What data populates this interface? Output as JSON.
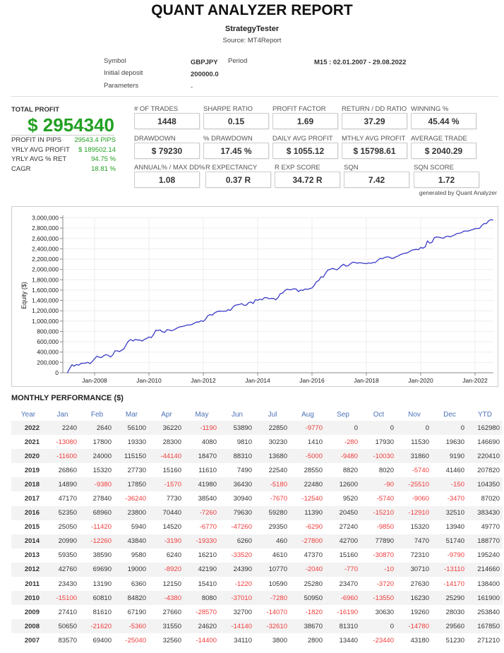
{
  "header": {
    "title": "QUANT ANALYZER REPORT",
    "subtitle": "StrategyTester",
    "source": "Source: MT4Report"
  },
  "info": {
    "symbol_label": "Symbol",
    "symbol": "GBPJPY",
    "period_label": "Period",
    "period": "M15 : 02.01.2007 - 29.08.2022",
    "deposit_label": "Initial deposit",
    "deposit": "200000.0",
    "parameters_label": "Parameters",
    "parameters": "-"
  },
  "summary": {
    "total_profit_label": "TOTAL PROFIT",
    "total_profit": "$ 2954340",
    "rows": [
      {
        "label": "PROFIT IN PIPS",
        "value": "29543.4 PIPS"
      },
      {
        "label": "YRLY AVG PROFIT",
        "value": "$ 189502.14"
      },
      {
        "label": "YRLY AVG % RET",
        "value": "94.75 %"
      },
      {
        "label": "CAGR",
        "value": "18.81 %"
      }
    ]
  },
  "stats": [
    [
      {
        "label": "# OF TRADES",
        "value": "1448"
      },
      {
        "label": "SHARPE RATIO",
        "value": "0.15"
      },
      {
        "label": "PROFIT FACTOR",
        "value": "1.69"
      },
      {
        "label": "RETURN / DD RATIO",
        "value": "37.29"
      },
      {
        "label": "WINNING %",
        "value": "45.44 %"
      }
    ],
    [
      {
        "label": "DRAWDOWN",
        "value": "$ 79230"
      },
      {
        "label": "% DRAWDOWN",
        "value": "17.45 %"
      },
      {
        "label": "DAILY AVG PROFIT",
        "value": "$ 1055.12"
      },
      {
        "label": "MTHLY AVG PROFIT",
        "value": "$ 15798.61"
      },
      {
        "label": "AVERAGE TRADE",
        "value": "$ 2040.29"
      }
    ],
    [
      {
        "label": "ANNUAL% / MAX DD%",
        "value": "1.08"
      },
      {
        "label": "R EXPECTANCY",
        "value": "0.37 R"
      },
      {
        "label": "R EXP SCORE",
        "value": "34.72 R"
      },
      {
        "label": "SQN",
        "value": "7.42"
      },
      {
        "label": "SQN SCORE",
        "value": "1.72"
      }
    ]
  ],
  "generated_by": "generated by Quant Analyzer",
  "chart_data": {
    "type": "line",
    "title": "",
    "xlabel": "",
    "ylabel": "Equity ($)",
    "ylim": [
      0,
      3000000
    ],
    "yticks": [
      "0",
      "200,000",
      "400,000",
      "600,000",
      "800,000",
      "1,000,000",
      "1,200,000",
      "1,400,000",
      "1,600,000",
      "1,800,000",
      "2,000,000",
      "2,200,000",
      "2,400,000",
      "2,600,000",
      "2,800,000",
      "3,000,000"
    ],
    "xticks": [
      "Jan-2008",
      "Jan-2010",
      "Jan-2012",
      "Jan-2014",
      "Jan-2016",
      "Jan-2018",
      "Jan-2020",
      "Jan-2022"
    ],
    "series": [
      {
        "name": "Equity",
        "color": "#3a3ac8",
        "values": "cumulative sum of monthly_performance values, Jan-2007 to Aug-2022 (0 to 2954340)"
      }
    ],
    "grid": true,
    "legend": "none"
  },
  "monthly": {
    "title": "MONTHLY PERFORMANCE ($)",
    "columns": [
      "Year",
      "Jan",
      "Feb",
      "Mar",
      "Apr",
      "May",
      "Jun",
      "Jul",
      "Aug",
      "Sep",
      "Oct",
      "Nov",
      "Dec",
      "YTD"
    ],
    "rows": [
      [
        "2022",
        2240,
        2640,
        56100,
        36220,
        -1190,
        53890,
        22850,
        -9770,
        0,
        0,
        0,
        0,
        162980
      ],
      [
        "2021",
        -13080,
        17800,
        19330,
        28300,
        4080,
        9810,
        30230,
        1410,
        -280,
        17930,
        11530,
        19630,
        146690
      ],
      [
        "2020",
        -11600,
        24000,
        115150,
        -44140,
        18470,
        88310,
        13680,
        -5000,
        -9480,
        -10030,
        31860,
        9190,
        220410
      ],
      [
        "2019",
        26860,
        15320,
        27730,
        15160,
        11610,
        7490,
        22540,
        28550,
        8820,
        8020,
        -5740,
        41460,
        207820
      ],
      [
        "2018",
        14890,
        -9380,
        17850,
        -1570,
        41980,
        36430,
        -5180,
        22480,
        12600,
        -90,
        -25510,
        -150,
        104350
      ],
      [
        "2017",
        47170,
        27840,
        -36240,
        7730,
        38540,
        30940,
        -7670,
        -12540,
        9520,
        -5740,
        -9060,
        -3470,
        87020
      ],
      [
        "2016",
        52350,
        68960,
        23800,
        70440,
        -7260,
        79630,
        59280,
        11390,
        20450,
        -15210,
        -12910,
        32510,
        383430
      ],
      [
        "2015",
        25050,
        -11420,
        5940,
        14520,
        -6770,
        -47260,
        29350,
        -6290,
        27240,
        -9850,
        15320,
        13940,
        49770
      ],
      [
        "2014",
        20990,
        -12260,
        43840,
        -3190,
        -19330,
        6260,
        460,
        -27800,
        42700,
        77890,
        7470,
        51740,
        188770
      ],
      [
        "2013",
        59350,
        38590,
        9580,
        6240,
        16210,
        -33520,
        4610,
        47370,
        15160,
        -30870,
        72310,
        -9790,
        195240
      ],
      [
        "2012",
        42760,
        69690,
        19000,
        -8920,
        42190,
        24390,
        10770,
        -2040,
        -770,
        -10,
        30710,
        -13110,
        214660
      ],
      [
        "2011",
        23430,
        13190,
        6360,
        12150,
        15410,
        -1220,
        10590,
        25280,
        23470,
        -3720,
        27630,
        -14170,
        138400
      ],
      [
        "2010",
        -15100,
        60810,
        84820,
        -4380,
        8080,
        -37010,
        -7280,
        50950,
        -6960,
        -13550,
        16230,
        25290,
        161900
      ],
      [
        "2009",
        27410,
        81610,
        67190,
        27660,
        -28570,
        32700,
        -14070,
        -1820,
        -16190,
        30630,
        19260,
        28030,
        253840
      ],
      [
        "2008",
        50650,
        -21620,
        -5360,
        31550,
        24620,
        -14140,
        -32610,
        38670,
        81310,
        0,
        -14780,
        29560,
        167850
      ],
      [
        "2007",
        83570,
        69400,
        -25040,
        32560,
        -14400,
        34110,
        3800,
        2800,
        13440,
        -23440,
        43180,
        51230,
        271210
      ]
    ]
  }
}
